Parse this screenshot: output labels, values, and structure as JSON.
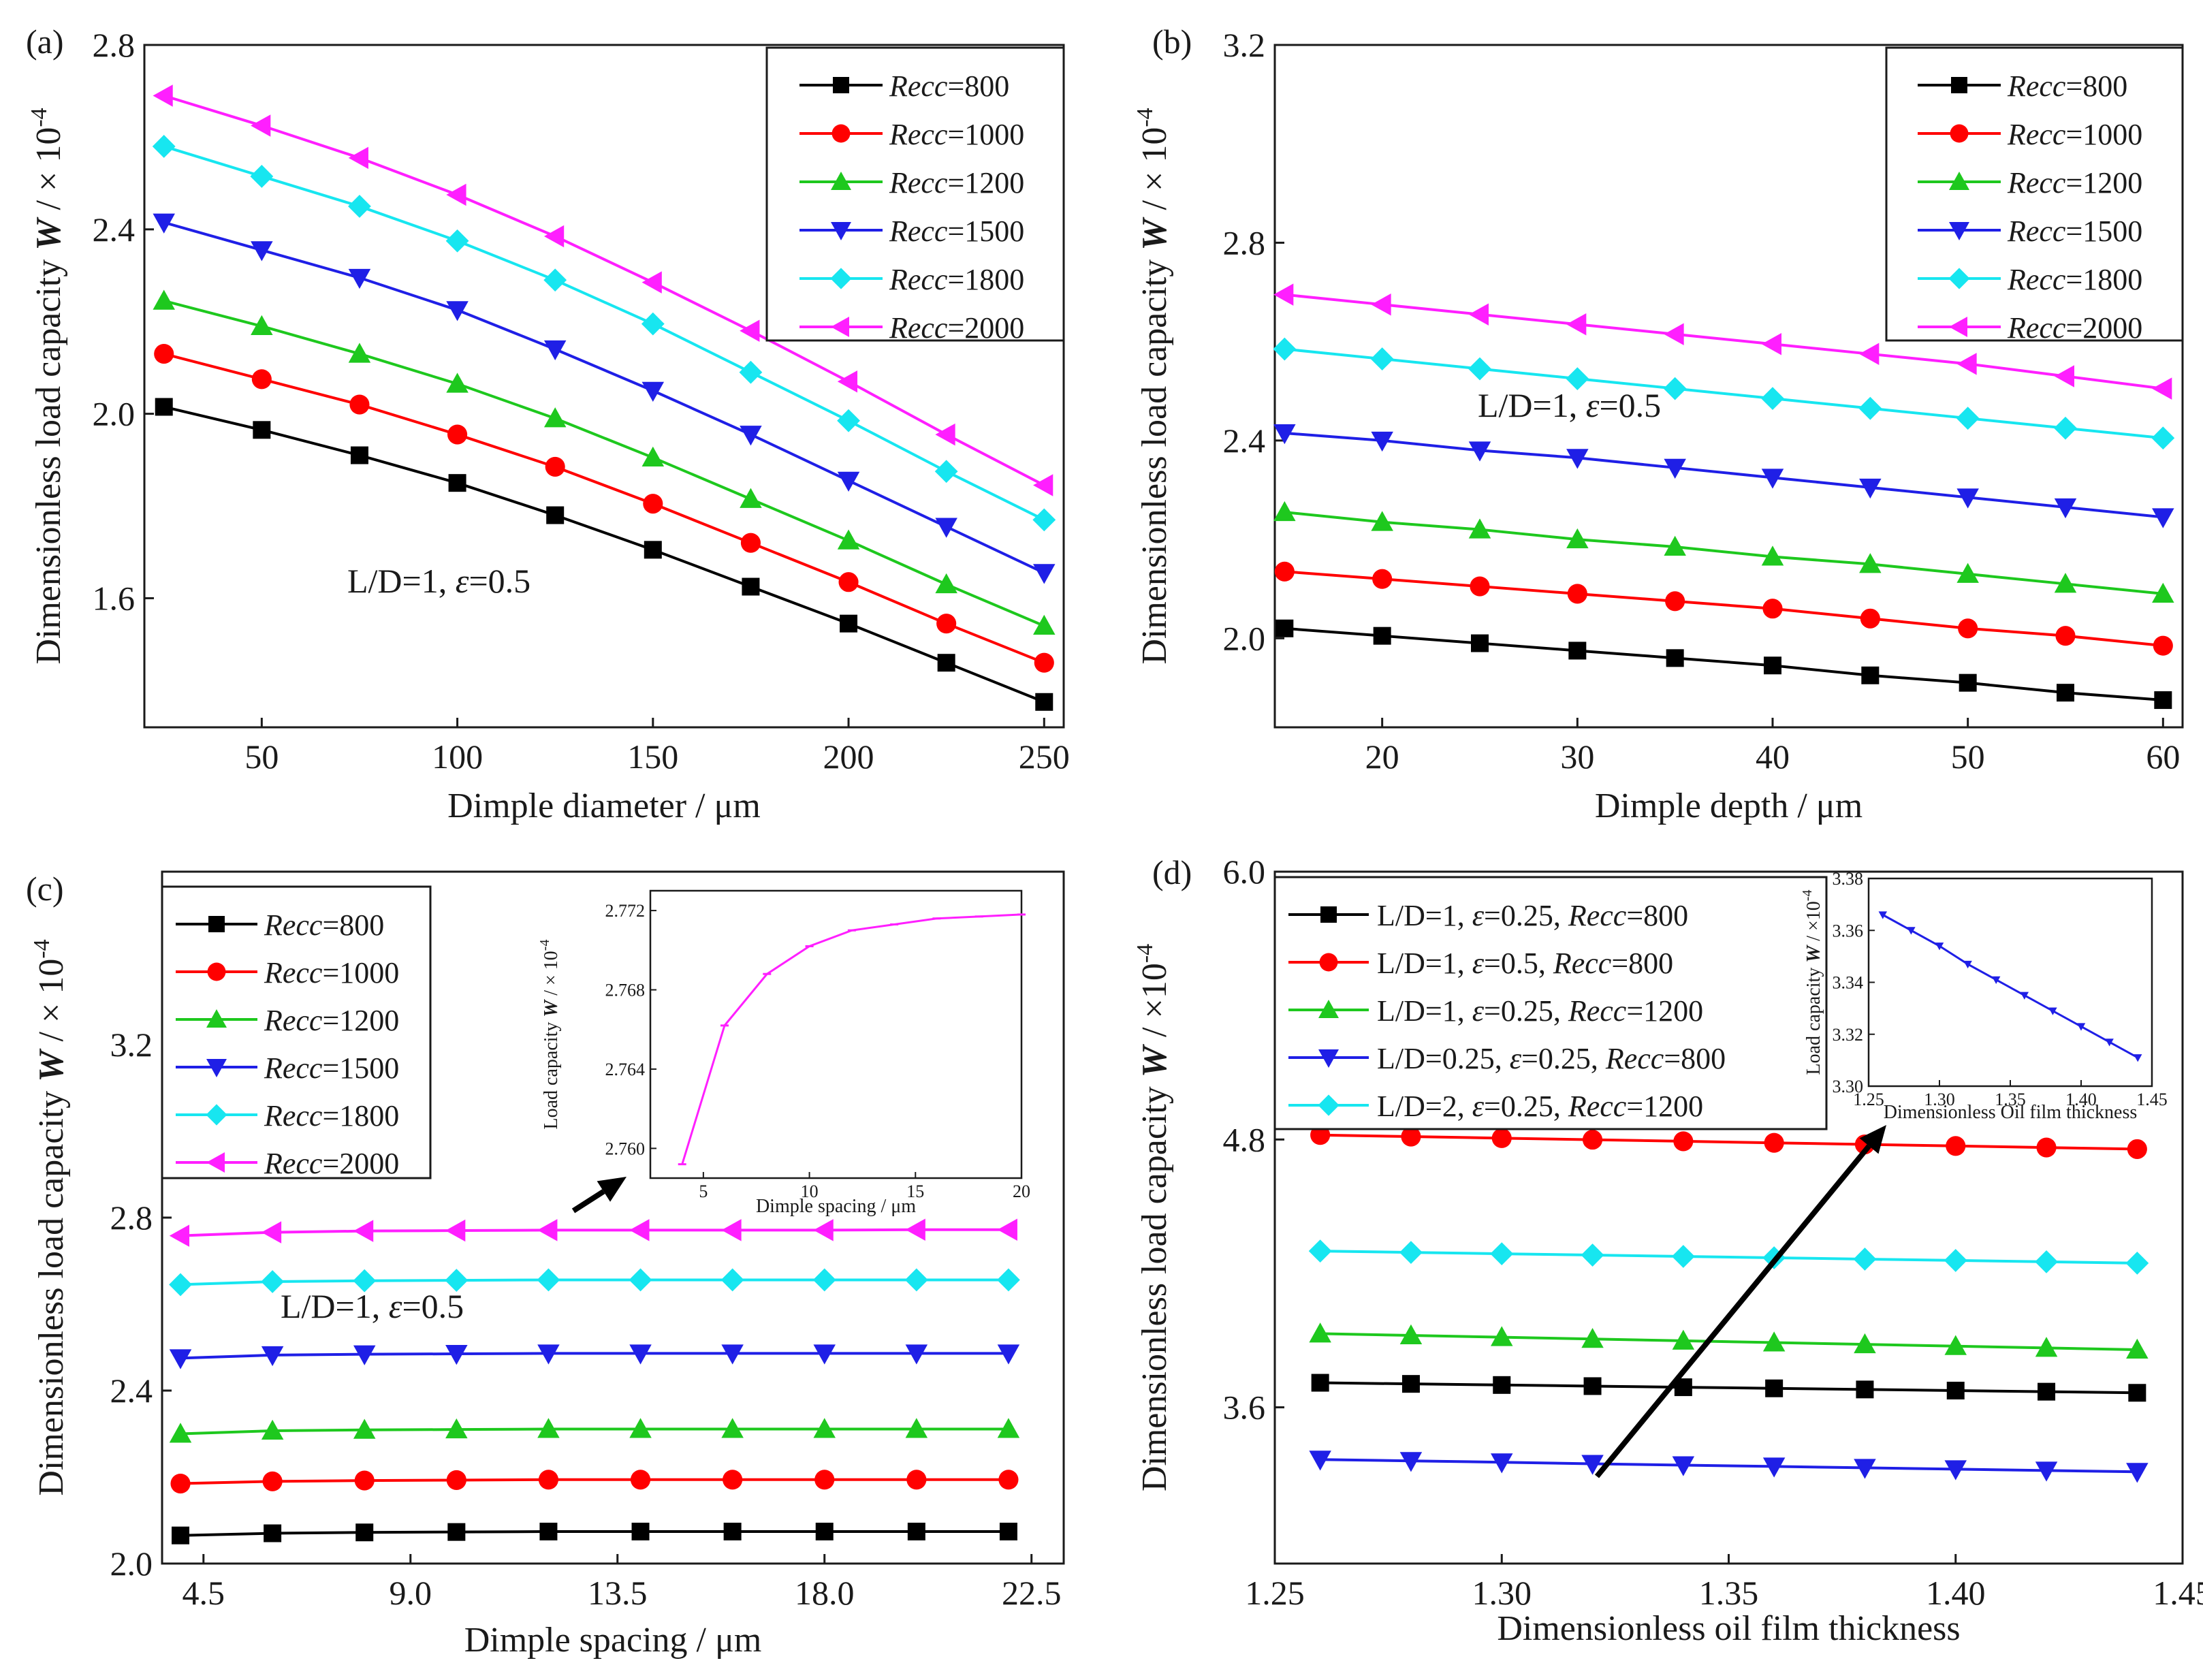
{
  "figure": {
    "colors": {
      "black": "#000000",
      "red": "#ff0000",
      "green": "#1ec81e",
      "blue": "#1f1fe6",
      "cyan": "#17e6f0",
      "magenta": "#ff1fff",
      "ink": "#1a1a1a",
      "arrow": "#000000"
    }
  },
  "chart_data": [
    {
      "id": "a",
      "type": "line",
      "panel_label": "(a)",
      "xlabel": "Dimple diameter / μm",
      "ylabel": "Dimensionless load capacity W / × 10^-4",
      "ylabel_main": "Dimensionless load capacity ",
      "ylabel_var": "W",
      "ylabel_unit": " / × 10",
      "ylabel_exp": "-4",
      "xlim": [
        20,
        255
      ],
      "ylim": [
        1.32,
        2.8
      ],
      "xticks": [
        50,
        100,
        150,
        200,
        250
      ],
      "xtick_labels": [
        "50",
        "100",
        "150",
        "200",
        "250"
      ],
      "yticks": [
        1.6,
        2.0,
        2.4,
        2.8
      ],
      "ytick_labels": [
        "1.6",
        "2.0",
        "2.4",
        "2.8"
      ],
      "x": [
        25,
        50,
        75,
        100,
        125,
        150,
        175,
        200,
        225,
        250
      ],
      "annotation": {
        "pre": "L/D=1, ",
        "sym": "ε",
        "post": "=0.5"
      },
      "legend_position": "top-right",
      "series": [
        {
          "name": "Recc=800",
          "label_var": "Recc",
          "label_val": "=800",
          "marker": "square",
          "color": "#000000",
          "values": [
            2.015,
            1.965,
            1.91,
            1.85,
            1.78,
            1.705,
            1.625,
            1.545,
            1.46,
            1.375
          ]
        },
        {
          "name": "Recc=1000",
          "label_var": "Recc",
          "label_val": "=1000",
          "marker": "circle",
          "color": "#ff0000",
          "values": [
            2.13,
            2.075,
            2.02,
            1.955,
            1.885,
            1.805,
            1.72,
            1.635,
            1.545,
            1.46
          ]
        },
        {
          "name": "Recc=1200",
          "label_var": "Recc",
          "label_val": "=1200",
          "marker": "triangle-up",
          "color": "#1ec81e",
          "values": [
            2.245,
            2.19,
            2.13,
            2.065,
            1.99,
            1.905,
            1.815,
            1.725,
            1.63,
            1.54
          ]
        },
        {
          "name": "Recc=1500",
          "label_var": "Recc",
          "label_val": "=1500",
          "marker": "triangle-down",
          "color": "#1f1fe6",
          "values": [
            2.415,
            2.355,
            2.295,
            2.225,
            2.14,
            2.05,
            1.955,
            1.855,
            1.755,
            1.655
          ]
        },
        {
          "name": "Recc=1800",
          "label_var": "Recc",
          "label_val": "=1800",
          "marker": "diamond",
          "color": "#17e6f0",
          "values": [
            2.58,
            2.515,
            2.45,
            2.375,
            2.29,
            2.195,
            2.09,
            1.985,
            1.875,
            1.77
          ]
        },
        {
          "name": "Recc=2000",
          "label_var": "Recc",
          "label_val": "=2000",
          "marker": "triangle-left",
          "color": "#ff1fff",
          "values": [
            2.69,
            2.625,
            2.555,
            2.475,
            2.385,
            2.285,
            2.18,
            2.07,
            1.955,
            1.845
          ]
        }
      ]
    },
    {
      "id": "b",
      "type": "line",
      "panel_label": "(b)",
      "xlabel": "Dimple depth / μm",
      "ylabel": "Dimensionless load capacity W / × 10^-4",
      "ylabel_main": "Dimensionless load capacity ",
      "ylabel_var": "W",
      "ylabel_unit": " / × 10",
      "ylabel_exp": "-4",
      "xlim": [
        14.5,
        61
      ],
      "ylim": [
        1.82,
        3.2
      ],
      "xticks": [
        20,
        30,
        40,
        50,
        60
      ],
      "xtick_labels": [
        "20",
        "30",
        "40",
        "50",
        "60"
      ],
      "yticks": [
        2.0,
        2.4,
        2.8,
        3.2
      ],
      "ytick_labels": [
        "2.0",
        "2.4",
        "2.8",
        "3.2"
      ],
      "x": [
        15,
        20,
        25,
        30,
        35,
        40,
        45,
        50,
        55,
        60
      ],
      "annotation": {
        "pre": "L/D=1, ",
        "sym": "ε",
        "post": "=0.5"
      },
      "legend_position": "top-right",
      "series": [
        {
          "name": "Recc=800",
          "label_var": "Recc",
          "label_val": "=800",
          "marker": "square",
          "color": "#000000",
          "values": [
            2.02,
            2.005,
            1.99,
            1.975,
            1.96,
            1.945,
            1.925,
            1.91,
            1.89,
            1.875
          ]
        },
        {
          "name": "Recc=1000",
          "label_var": "Recc",
          "label_val": "=1000",
          "marker": "circle",
          "color": "#ff0000",
          "values": [
            2.135,
            2.12,
            2.105,
            2.09,
            2.075,
            2.06,
            2.04,
            2.02,
            2.005,
            1.985
          ]
        },
        {
          "name": "Recc=1200",
          "label_var": "Recc",
          "label_val": "=1200",
          "marker": "triangle-up",
          "color": "#1ec81e",
          "values": [
            2.255,
            2.235,
            2.22,
            2.2,
            2.185,
            2.165,
            2.15,
            2.13,
            2.11,
            2.09
          ]
        },
        {
          "name": "Recc=1500",
          "label_var": "Recc",
          "label_val": "=1500",
          "marker": "triangle-down",
          "color": "#1f1fe6",
          "values": [
            2.415,
            2.4,
            2.38,
            2.365,
            2.345,
            2.325,
            2.305,
            2.285,
            2.265,
            2.245
          ]
        },
        {
          "name": "Recc=1800",
          "label_var": "Recc",
          "label_val": "=1800",
          "marker": "diamond",
          "color": "#17e6f0",
          "values": [
            2.585,
            2.565,
            2.545,
            2.525,
            2.505,
            2.485,
            2.465,
            2.445,
            2.425,
            2.405
          ]
        },
        {
          "name": "Recc=2000",
          "label_var": "Recc",
          "label_val": "=2000",
          "marker": "triangle-left",
          "color": "#ff1fff",
          "values": [
            2.695,
            2.675,
            2.655,
            2.635,
            2.615,
            2.595,
            2.575,
            2.555,
            2.53,
            2.505
          ]
        }
      ]
    },
    {
      "id": "c",
      "type": "line",
      "panel_label": "(c)",
      "xlabel": "Dimple spacing / μm",
      "ylabel": "Dimensionless load capacity W / × 10^-4",
      "ylabel_main": "Dimensionless load capacity ",
      "ylabel_var": "W",
      "ylabel_unit": " / × 10",
      "ylabel_exp": "-4",
      "xlim": [
        3.6,
        23.2
      ],
      "ylim": [
        2.0,
        3.6
      ],
      "xticks": [
        4.5,
        9.0,
        13.5,
        18.0,
        22.5
      ],
      "xtick_labels": [
        "4.5",
        "9.0",
        "13.5",
        "18.0",
        "22.5"
      ],
      "yticks": [
        2.0,
        2.4,
        2.8,
        3.2
      ],
      "ytick_labels": [
        "2.0",
        "2.4",
        "2.8",
        "3.2"
      ],
      "x": [
        4,
        6,
        8,
        10,
        12,
        14,
        16,
        18,
        20,
        22
      ],
      "annotation": {
        "pre": "L/D=1, ",
        "sym": "ε",
        "post": "=0.5"
      },
      "legend_position": "top-left",
      "series": [
        {
          "name": "Recc=800",
          "label_var": "Recc",
          "label_val": "=800",
          "marker": "square",
          "color": "#000000",
          "values": [
            2.065,
            2.07,
            2.072,
            2.073,
            2.074,
            2.074,
            2.074,
            2.074,
            2.074,
            2.074
          ]
        },
        {
          "name": "Recc=1000",
          "label_var": "Recc",
          "label_val": "=1000",
          "marker": "circle",
          "color": "#ff0000",
          "values": [
            2.185,
            2.19,
            2.192,
            2.193,
            2.194,
            2.194,
            2.194,
            2.194,
            2.194,
            2.194
          ]
        },
        {
          "name": "Recc=1200",
          "label_var": "Recc",
          "label_val": "=1200",
          "marker": "triangle-up",
          "color": "#1ec81e",
          "values": [
            2.3,
            2.307,
            2.309,
            2.31,
            2.311,
            2.311,
            2.311,
            2.311,
            2.311,
            2.311
          ]
        },
        {
          "name": "Recc=1500",
          "label_var": "Recc",
          "label_val": "=1500",
          "marker": "triangle-down",
          "color": "#1f1fe6",
          "values": [
            2.475,
            2.482,
            2.484,
            2.485,
            2.486,
            2.486,
            2.486,
            2.486,
            2.486,
            2.486
          ]
        },
        {
          "name": "Recc=1800",
          "label_var": "Recc",
          "label_val": "=1800",
          "marker": "diamond",
          "color": "#17e6f0",
          "values": [
            2.645,
            2.652,
            2.654,
            2.655,
            2.656,
            2.656,
            2.656,
            2.656,
            2.656,
            2.656
          ]
        },
        {
          "name": "Recc=2000",
          "label_var": "Recc",
          "label_val": "=2000",
          "marker": "triangle-left",
          "color": "#ff1fff",
          "values": [
            2.758,
            2.766,
            2.769,
            2.77,
            2.771,
            2.771,
            2.771,
            2.771,
            2.772,
            2.772
          ]
        }
      ],
      "inset": {
        "type": "line",
        "xlabel": "Dimple spacing / μm",
        "ylabel_main": "Load capacity ",
        "ylabel_var": "W",
        "ylabel_unit": " / × 10",
        "ylabel_exp": "-4",
        "xlim": [
          2.5,
          20
        ],
        "ylim": [
          2.7585,
          2.773
        ],
        "xticks": [
          5,
          10,
          15,
          20
        ],
        "xtick_labels": [
          "5",
          "10",
          "15",
          "20"
        ],
        "yticks": [
          2.76,
          2.764,
          2.768,
          2.772
        ],
        "ytick_labels": [
          "2.760",
          "2.764",
          "2.768",
          "2.772"
        ],
        "x": [
          4,
          6,
          8,
          10,
          12,
          14,
          16,
          18,
          20
        ],
        "values": [
          2.7592,
          2.7662,
          2.7688,
          2.7702,
          2.771,
          2.7713,
          2.7716,
          2.7717,
          2.7718
        ],
        "color": "#ff1fff"
      }
    },
    {
      "id": "d",
      "type": "line",
      "panel_label": "(d)",
      "xlabel": "Dimensionless oil film thickness",
      "ylabel": "Dimensionless load capacity W / ×10^-4",
      "ylabel_main": "Dimensionless load capacity ",
      "ylabel_var": "W",
      "ylabel_unit": " / ×10",
      "ylabel_exp": "-4",
      "xlim": [
        1.25,
        1.45
      ],
      "ylim": [
        2.9,
        6.0
      ],
      "xticks": [
        1.25,
        1.3,
        1.35,
        1.4,
        1.45
      ],
      "xtick_labels": [
        "1.25",
        "1.30",
        "1.35",
        "1.40",
        "1.45"
      ],
      "yticks": [
        3.6,
        4.8,
        6.0
      ],
      "ytick_labels": [
        "3.6",
        "4.8",
        "6.0"
      ],
      "x": [
        1.26,
        1.28,
        1.3,
        1.32,
        1.34,
        1.36,
        1.38,
        1.4,
        1.42,
        1.44
      ],
      "legend_position": "top-left",
      "series": [
        {
          "name": "L/D=1, ε=0.25, Recc=800",
          "lbl_pre": "L/D=1, ",
          "lbl_eps": "=0.25, ",
          "lbl_var": "Recc",
          "lbl_val": "=800",
          "marker": "square",
          "color": "#000000",
          "values": [
            3.71,
            3.705,
            3.7,
            3.695,
            3.69,
            3.685,
            3.68,
            3.675,
            3.67,
            3.665
          ]
        },
        {
          "name": "L/D=1, ε=0.5, Recc=800",
          "lbl_pre": "L/D=1, ",
          "lbl_eps": "=0.5, ",
          "lbl_var": "Recc",
          "lbl_val": "=800",
          "marker": "circle",
          "color": "#ff0000",
          "values": [
            4.82,
            4.813,
            4.806,
            4.799,
            4.792,
            4.785,
            4.778,
            4.771,
            4.764,
            4.757
          ]
        },
        {
          "name": "L/D=1, ε=0.25, Recc=1200",
          "lbl_pre": "L/D=1, ",
          "lbl_eps": "=0.25, ",
          "lbl_var": "Recc",
          "lbl_val": "=1200",
          "marker": "triangle-up",
          "color": "#1ec81e",
          "values": [
            3.93,
            3.922,
            3.914,
            3.906,
            3.898,
            3.89,
            3.882,
            3.874,
            3.866,
            3.858
          ]
        },
        {
          "name": "L/D=0.25, ε=0.25, Recc=800",
          "lbl_pre": "L/D=0.25, ",
          "lbl_eps": "=0.25, ",
          "lbl_var": "Recc",
          "lbl_val": "=800",
          "marker": "triangle-down",
          "color": "#1f1fe6",
          "values": [
            3.366,
            3.36,
            3.354,
            3.347,
            3.341,
            3.335,
            3.329,
            3.323,
            3.317,
            3.311
          ]
        },
        {
          "name": "L/D=2, ε=0.25, Recc=1200",
          "lbl_pre": "L/D=2, ",
          "lbl_eps": "=0.25, ",
          "lbl_var": "Recc",
          "lbl_val": "=1200",
          "marker": "diamond",
          "color": "#17e6f0",
          "values": [
            4.3,
            4.294,
            4.288,
            4.282,
            4.276,
            4.27,
            4.264,
            4.258,
            4.252,
            4.246
          ]
        }
      ],
      "inset": {
        "type": "line",
        "xlabel": "Dimensionless Oil film thickness",
        "ylabel_main": "Load capacity ",
        "ylabel_var": "W",
        "ylabel_unit": " / ×10",
        "ylabel_exp": "-4",
        "xlim": [
          1.25,
          1.45
        ],
        "ylim": [
          3.3,
          3.38
        ],
        "xticks": [
          1.25,
          1.3,
          1.35,
          1.4,
          1.45
        ],
        "xtick_labels": [
          "1.25",
          "1.30",
          "1.35",
          "1.40",
          "1.45"
        ],
        "yticks": [
          3.3,
          3.32,
          3.34,
          3.36,
          3.38
        ],
        "ytick_labels": [
          "3.30",
          "3.32",
          "3.34",
          "3.36",
          "3.38"
        ],
        "x": [
          1.26,
          1.28,
          1.3,
          1.32,
          1.34,
          1.36,
          1.38,
          1.4,
          1.42,
          1.44
        ],
        "values": [
          3.366,
          3.36,
          3.354,
          3.347,
          3.341,
          3.335,
          3.329,
          3.323,
          3.317,
          3.311
        ],
        "color": "#1f1fe6"
      }
    }
  ]
}
